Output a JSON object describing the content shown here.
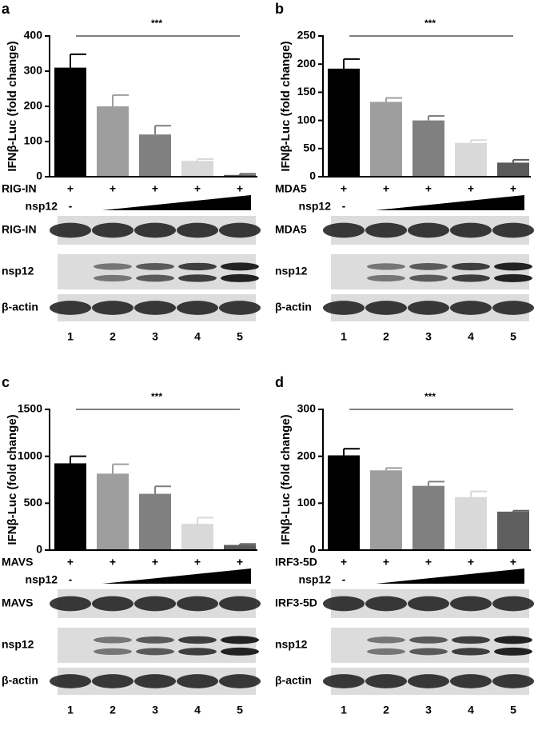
{
  "chart_data": [
    {
      "type": "bar",
      "panel": "a",
      "ylabel": "IFNβ-Luc (fold change)",
      "significance": "***",
      "values": [
        310,
        200,
        120,
        45,
        5
      ],
      "errors": [
        38,
        32,
        25,
        5,
        3
      ],
      "colors": [
        "#000000",
        "#9e9e9e",
        "#808080",
        "#d9d9d9",
        "#5a5a5a"
      ],
      "ylim": [
        0,
        400
      ],
      "yticks": [
        0,
        100,
        200,
        300,
        400
      ],
      "treatments": [
        {
          "label": "RIG-IN",
          "marks": [
            "+",
            "+",
            "+",
            "+",
            "+"
          ]
        },
        {
          "label": "nsp12",
          "marks": [
            "-"
          ]
        }
      ],
      "blots": [
        "RIG-IN",
        "nsp12",
        "β-actin"
      ],
      "lanes": [
        "1",
        "2",
        "3",
        "4",
        "5"
      ]
    },
    {
      "type": "bar",
      "panel": "b",
      "ylabel": "IFNβ-Luc (fold change)",
      "significance": "***",
      "values": [
        192,
        133,
        100,
        60,
        25
      ],
      "errors": [
        17,
        7,
        8,
        5,
        5
      ],
      "colors": [
        "#000000",
        "#9e9e9e",
        "#808080",
        "#d9d9d9",
        "#5a5a5a"
      ],
      "ylim": [
        0,
        250
      ],
      "yticks": [
        0,
        50,
        100,
        150,
        200,
        250
      ],
      "treatments": [
        {
          "label": "MDA5",
          "marks": [
            "+",
            "+",
            "+",
            "+",
            "+"
          ]
        },
        {
          "label": "nsp12",
          "marks": [
            "-"
          ]
        }
      ],
      "blots": [
        "MDA5",
        "nsp12",
        "β-actin"
      ],
      "lanes": [
        "1",
        "2",
        "3",
        "4",
        "5"
      ]
    },
    {
      "type": "bar",
      "panel": "c",
      "ylabel": "IFNβ-Luc (fold change)",
      "significance": "***",
      "values": [
        925,
        815,
        600,
        280,
        55
      ],
      "errors": [
        75,
        100,
        80,
        65,
        10
      ],
      "colors": [
        "#000000",
        "#9e9e9e",
        "#808080",
        "#d9d9d9",
        "#5a5a5a"
      ],
      "ylim": [
        0,
        1500
      ],
      "yticks": [
        0,
        500,
        1000,
        1500
      ],
      "treatments": [
        {
          "label": "MAVS",
          "marks": [
            "+",
            "+",
            "+",
            "+",
            "+"
          ]
        },
        {
          "label": "nsp12",
          "marks": [
            "-"
          ]
        }
      ],
      "blots": [
        "MAVS",
        "nsp12",
        "β-actin"
      ],
      "lanes": [
        "1",
        "2",
        "3",
        "4",
        "5"
      ]
    },
    {
      "type": "bar",
      "panel": "d",
      "ylabel": "IFNβ-Luc (fold change)",
      "significance": "***",
      "values": [
        202,
        170,
        137,
        113,
        82
      ],
      "errors": [
        14,
        5,
        9,
        12,
        2
      ],
      "colors": [
        "#000000",
        "#9e9e9e",
        "#808080",
        "#d9d9d9",
        "#5f5f5f"
      ],
      "ylim": [
        0,
        300
      ],
      "yticks": [
        0,
        100,
        200,
        300
      ],
      "treatments": [
        {
          "label": "IRF3-5D",
          "marks": [
            "+",
            "+",
            "+",
            "+",
            "+"
          ]
        },
        {
          "label": "nsp12",
          "marks": [
            "-"
          ]
        }
      ],
      "blots": [
        "IRF3-5D",
        "nsp12",
        "β-actin"
      ],
      "lanes": [
        "1",
        "2",
        "3",
        "4",
        "5"
      ]
    }
  ]
}
